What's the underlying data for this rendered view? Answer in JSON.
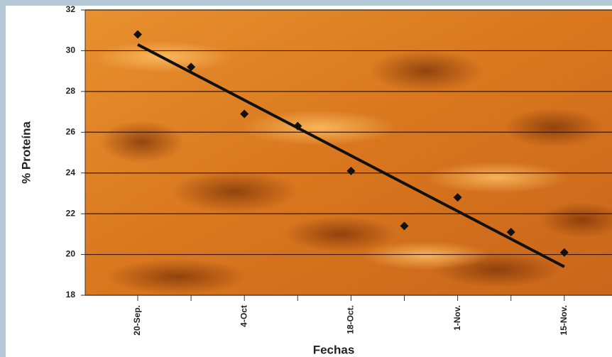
{
  "chart_data": {
    "type": "scatter",
    "y_label": "% Proteína",
    "x_label": "Fechas",
    "categories": [
      "20-Sep.",
      null,
      "4-Oct",
      null,
      "18-Oct.",
      null,
      "1-Nov.",
      null,
      "15-Nov."
    ],
    "series": [
      {
        "color": "#111111",
        "values": [
          30.8,
          29.2,
          26.9,
          26.3,
          24.1,
          21.4,
          22.8,
          21.1,
          20.1
        ]
      }
    ],
    "trendline": {
      "color": "#111111",
      "start": 30.3,
      "end": 19.4
    },
    "ylim": [
      18,
      32
    ],
    "yticks": [
      18,
      20,
      22,
      24,
      26,
      28,
      30,
      32
    ],
    "grid": true
  }
}
